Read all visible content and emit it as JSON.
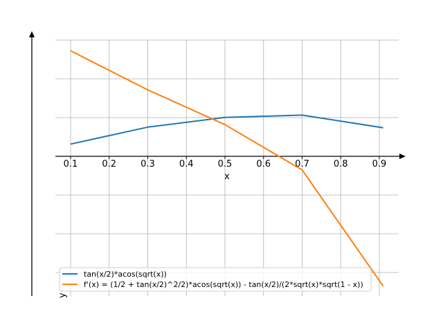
{
  "chart_data": {
    "type": "line",
    "title": "",
    "xlabel": "x",
    "ylabel": "y",
    "xlim": [
      0.06,
      0.95
    ],
    "ylim": [
      -0.72,
      0.64
    ],
    "x_ticks": [
      0.1,
      0.2,
      0.3,
      0.4,
      0.5,
      0.6,
      0.7,
      0.8,
      0.9
    ],
    "x_tick_labels": [
      "0.1",
      "0.2",
      "0.3",
      "0.4",
      "0.5",
      "0.6",
      "0.7",
      "0.8",
      "0.9"
    ],
    "y_gridlines": [
      -0.6,
      -0.4,
      -0.2,
      0.0,
      0.2,
      0.4,
      0.6
    ],
    "grid": true,
    "legend_position": "lower-left",
    "series": [
      {
        "name": "tan(x/2)*acos(sqrt(x))",
        "color": "#1f77b4",
        "x": [
          0.1,
          0.3,
          0.5,
          0.7,
          0.91
        ],
        "y": [
          0.063,
          0.15,
          0.2,
          0.212,
          0.147
        ]
      },
      {
        "name": "f'(x) = (1/2 + tan(x/2)^2/2)*acos(sqrt(x)) - tan(x/2)/(2*sqrt(x)*sqrt(1 - x))",
        "color": "#ff7f0e",
        "x": [
          0.1,
          0.3,
          0.5,
          0.7,
          0.91
        ],
        "y": [
          0.543,
          0.342,
          0.163,
          -0.07,
          -0.668
        ]
      }
    ]
  }
}
